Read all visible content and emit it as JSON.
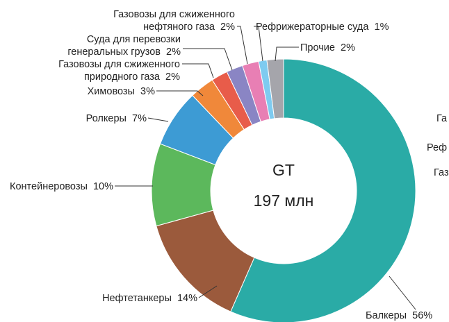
{
  "chart_data": {
    "type": "donut",
    "center_title": "GT",
    "center_subtitle": "197 млн",
    "categories": [
      "Балкеры",
      "Нефтетанкеры",
      "Контейнеровозы",
      "Ролкеры",
      "Химовозы",
      "Газовозы для сжиженного\nприродного газа",
      "Суда для перевозки\nгенеральных грузов",
      "Газовозы для сжиженного\nнефтяного газа",
      "Рефрижераторные суда",
      "Прочие"
    ],
    "values": [
      56,
      14,
      10,
      7,
      3,
      2,
      2,
      2,
      1,
      2
    ],
    "value_labels": [
      "56%",
      "14%",
      "10%",
      "7%",
      "3%",
      "2%",
      "2%",
      "2%",
      "1%",
      "2%"
    ],
    "colors": [
      "#2aaba6",
      "#9b5a3c",
      "#5cb85c",
      "#3d9bd4",
      "#f0883a",
      "#e85c4a",
      "#8a85c4",
      "#e87fb4",
      "#7ecbf0",
      "#a5a5ab"
    ],
    "clipped_texts": [
      "Га",
      "Реф",
      "Газ"
    ]
  }
}
